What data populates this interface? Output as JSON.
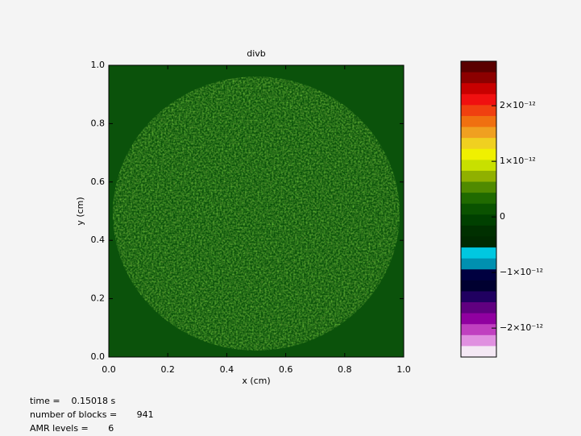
{
  "chart_data": {
    "type": "heatmap",
    "title": "divb",
    "x_label": "x (cm)",
    "y_label": "y (cm)",
    "xlim": [
      0,
      1
    ],
    "ylim": [
      0,
      1
    ],
    "xticks": [
      {
        "value": 0,
        "label": "0.0"
      },
      0.2,
      0.4,
      0.6,
      0.8,
      {
        "value": 1,
        "label": "1.0"
      }
    ],
    "yticks": [
      {
        "value": 0,
        "label": "0.0"
      },
      0.2,
      0.4,
      0.6,
      0.8,
      {
        "value": 1,
        "label": "1.0"
      }
    ],
    "colorbar": {
      "lim": [
        -2.52e-12,
        2.8e-12
      ],
      "ticks": [
        {
          "value": 2e-12,
          "label": "2×10⁻¹²"
        },
        {
          "value": 1e-12,
          "label": "1×10⁻¹²"
        },
        0,
        {
          "value": -1e-12,
          "label": "−1×10⁻¹²"
        },
        {
          "value": -2e-12,
          "label": "−2×10⁻¹²"
        }
      ],
      "colors": [
        "#5a0000",
        "#8c0000",
        "#c80000",
        "#f01010",
        "#f04010",
        "#f07010",
        "#f0a020",
        "#f0d020",
        "#f0f000",
        "#c8e000",
        "#90b000",
        "#508a00",
        "#206a00",
        "#0a5200",
        "#004000",
        "#003000",
        "#002a00",
        "#00c8e0",
        "#0090b0",
        "#000040",
        "#000030",
        "#200060",
        "#600080",
        "#9000a0",
        "#c040c0",
        "#e090e0",
        "#f4e8f4"
      ]
    },
    "annotations": [
      "time =    0.15018 s",
      "number of blocks =       941",
      "AMR levels =       6"
    ]
  }
}
